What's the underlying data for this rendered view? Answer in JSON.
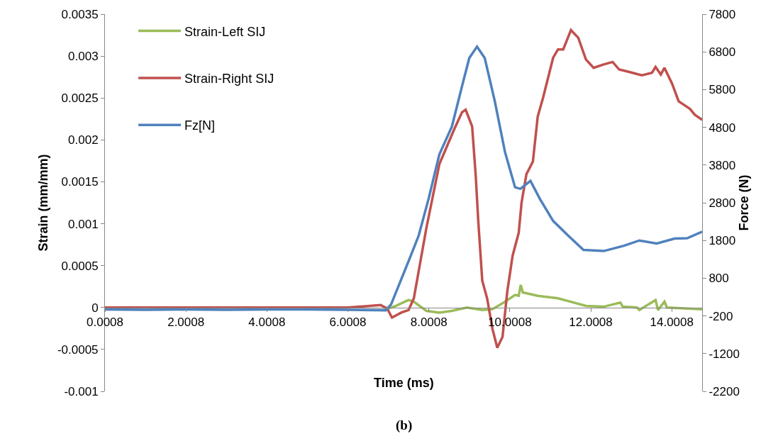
{
  "chart_data": {
    "type": "line",
    "xlabel": "Time (ms)",
    "ylabel": "Strain (mm/mm)",
    "y2label": "Force (N)",
    "annotations": [
      "(b)"
    ],
    "xlim": [
      0.0008,
      14.75
    ],
    "xticks": [
      0.0008,
      2.0008,
      4.0008,
      6.0008,
      8.0008,
      10.0008,
      12.0008,
      14.0008
    ],
    "ylim": [
      -0.001,
      0.0035
    ],
    "yticks": [
      -0.001,
      -0.0005,
      0,
      0.0005,
      0.001,
      0.0015,
      0.002,
      0.0025,
      0.003,
      0.0035
    ],
    "y2lim": [
      -2200,
      7800
    ],
    "y2ticks": [
      -2200,
      -1200,
      -200,
      800,
      1800,
      2800,
      3800,
      4800,
      5800,
      6800,
      7800
    ],
    "grid": false,
    "legend": "top left",
    "line_style": "solid",
    "marker": "none",
    "series": [
      {
        "name": "Strain-Left SIJ",
        "color": "#9bbb59",
        "x": [
          6.89,
          7.19,
          7.5,
          7.63,
          7.94,
          8.26,
          8.57,
          8.94,
          9.32,
          9.57,
          9.82,
          10.13,
          10.22,
          10.27,
          10.32,
          10.69,
          11.19,
          11.57,
          11.88,
          12.32,
          12.73,
          12.79,
          13.14,
          13.2,
          13.6,
          13.66,
          13.82,
          13.88,
          14.75
        ],
        "values": [
          -3e-05,
          2e-05,
          9e-05,
          7e-05,
          -4e-05,
          -6e-05,
          -4e-05,
          0,
          -3e-05,
          -2e-05,
          5e-05,
          0.00015,
          0.00014,
          0.00027,
          0.00018,
          0.00014,
          0.00011,
          6e-05,
          2e-05,
          1e-05,
          6e-05,
          1e-05,
          0,
          -3e-05,
          9e-05,
          -3e-05,
          7e-05,
          0,
          -2e-05
        ]
      },
      {
        "name": "Strain-Right SIJ",
        "color": "#c0504d",
        "x": [
          0.0008,
          1,
          2,
          3,
          4,
          5,
          6,
          6.81,
          6.97,
          7.09,
          7.32,
          7.5,
          7.63,
          7.94,
          8.26,
          8.63,
          8.82,
          8.91,
          9.07,
          9.16,
          9.22,
          9.32,
          9.44,
          9.57,
          9.69,
          9.82,
          9.94,
          10.07,
          10.22,
          10.29,
          10.41,
          10.57,
          10.69,
          10.82,
          11.07,
          11.19,
          11.32,
          11.51,
          11.69,
          11.88,
          12.07,
          12.32,
          12.54,
          12.7,
          12.95,
          13.26,
          13.51,
          13.6,
          13.73,
          13.82,
          14.01,
          14.17,
          14.45,
          14.57,
          14.75
        ],
        "values": [
          0,
          0,
          0,
          0,
          0,
          0,
          0,
          3e-05,
          -1e-05,
          -0.00012,
          -6e-05,
          -3e-05,
          0.00011,
          0.00095,
          0.00171,
          0.00213,
          0.00233,
          0.00236,
          0.00216,
          0.00156,
          0.00104,
          0.00032,
          0.00011,
          -0.00025,
          -0.00048,
          -0.00035,
          0.0002,
          0.00062,
          0.00089,
          0.00125,
          0.00159,
          0.00174,
          0.00228,
          0.0025,
          0.00298,
          0.00308,
          0.00308,
          0.00331,
          0.00322,
          0.00296,
          0.00286,
          0.0029,
          0.00293,
          0.00284,
          0.00281,
          0.00277,
          0.0028,
          0.00287,
          0.00278,
          0.00286,
          0.00267,
          0.00246,
          0.00237,
          0.0023,
          0.00224
        ]
      },
      {
        "name": "Fz[N]",
        "color": "#4f81bd",
        "axis": "y2",
        "x": [
          0.0008,
          1,
          2,
          3,
          4,
          5,
          6,
          6.94,
          7.07,
          7.5,
          7.75,
          8,
          8.26,
          8.57,
          8.82,
          9,
          9.19,
          9.38,
          9.63,
          9.88,
          10.13,
          10.26,
          10.51,
          10.76,
          11.07,
          11.44,
          11.82,
          12.32,
          12.82,
          13.2,
          13.63,
          14.07,
          14.38,
          14.75
        ],
        "values": [
          -30,
          -40,
          -30,
          -40,
          -30,
          -30,
          -40,
          -50,
          110,
          1250,
          1930,
          2930,
          4080,
          4820,
          5890,
          6640,
          6940,
          6640,
          5490,
          4150,
          3210,
          3170,
          3380,
          2870,
          2320,
          1930,
          1550,
          1520,
          1660,
          1800,
          1720,
          1850,
          1860,
          2030
        ]
      }
    ]
  }
}
